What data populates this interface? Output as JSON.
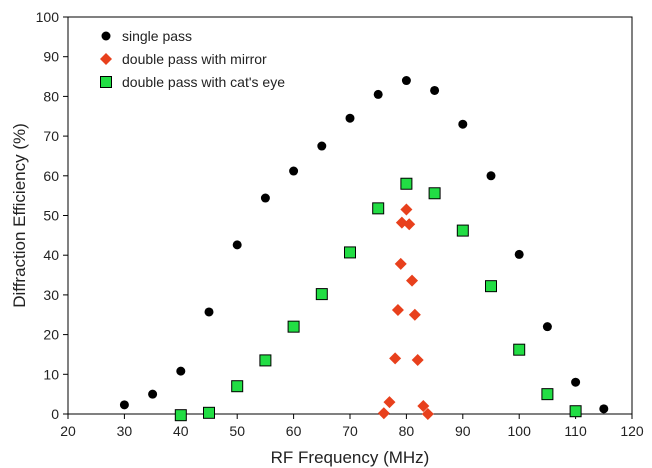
{
  "chart_data": {
    "type": "scatter",
    "xlabel": "RF Frequency (MHz)",
    "ylabel": "Diffraction Efficiency (%)",
    "xlim": [
      20,
      120
    ],
    "ylim": [
      0,
      100
    ],
    "x_ticks": [
      20,
      30,
      40,
      50,
      60,
      70,
      80,
      90,
      100,
      110,
      120
    ],
    "y_ticks": [
      0,
      10,
      20,
      30,
      40,
      50,
      60,
      70,
      80,
      90,
      100
    ],
    "grid": false,
    "legend_position": "top-left",
    "series": [
      {
        "name": "single pass",
        "marker": "circle",
        "color": "#000000",
        "points": [
          [
            30,
            2.3
          ],
          [
            35,
            5
          ],
          [
            40,
            10.8
          ],
          [
            45,
            25.7
          ],
          [
            50,
            42.6
          ],
          [
            55,
            54.4
          ],
          [
            60,
            61.2
          ],
          [
            65,
            67.5
          ],
          [
            70,
            74.5
          ],
          [
            75,
            80.5
          ],
          [
            80,
            84
          ],
          [
            85,
            81.5
          ],
          [
            90,
            73
          ],
          [
            95,
            60
          ],
          [
            100,
            40.2
          ],
          [
            105,
            22
          ],
          [
            110,
            8
          ],
          [
            115,
            1.3
          ]
        ]
      },
      {
        "name": "double pass with mirror",
        "marker": "diamond",
        "color": "#e8401c",
        "points": [
          [
            76,
            0.2
          ],
          [
            77,
            3
          ],
          [
            78,
            14
          ],
          [
            78.5,
            26.2
          ],
          [
            79,
            37.8
          ],
          [
            79.2,
            48.2
          ],
          [
            80,
            51.5
          ],
          [
            80.5,
            47.8
          ],
          [
            81,
            33.6
          ],
          [
            81.5,
            25
          ],
          [
            82,
            13.6
          ],
          [
            83,
            2
          ],
          [
            83.8,
            0
          ]
        ]
      },
      {
        "name": "double pass with cat's eye",
        "marker": "square",
        "color": "#22dd44",
        "points": [
          [
            40,
            -0.3
          ],
          [
            45,
            0.3
          ],
          [
            50,
            7
          ],
          [
            55,
            13.5
          ],
          [
            60,
            22
          ],
          [
            65,
            30.2
          ],
          [
            70,
            40.7
          ],
          [
            75,
            51.8
          ],
          [
            80,
            58
          ],
          [
            85,
            55.6
          ],
          [
            90,
            46.2
          ],
          [
            95,
            32.2
          ],
          [
            100,
            16.2
          ],
          [
            105,
            5
          ],
          [
            110,
            0.7
          ]
        ]
      }
    ]
  }
}
